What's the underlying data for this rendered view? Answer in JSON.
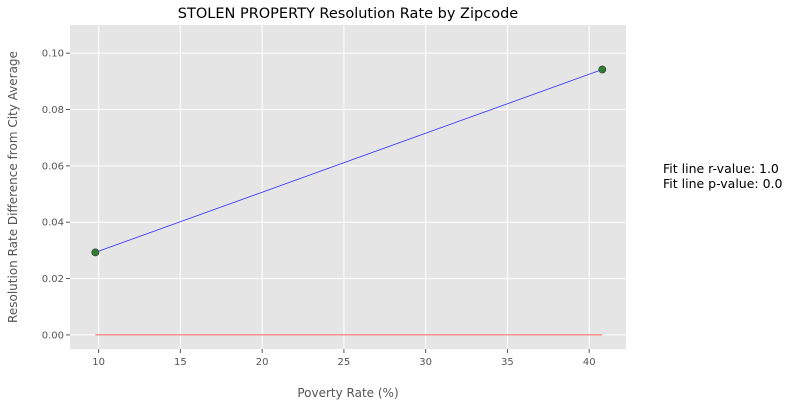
{
  "chart_data": {
    "type": "scatter",
    "title": "STOLEN PROPERTY Resolution Rate by Zipcode",
    "xlabel": "Poverty Rate (%)",
    "ylabel": "Resolution Rate Difference from City Average",
    "xlim": [
      8.25,
      42.25
    ],
    "ylim": [
      -0.005,
      0.11
    ],
    "xticks": [
      10,
      15,
      20,
      25,
      30,
      35,
      40
    ],
    "xtick_labels": [
      "10",
      "15",
      "20",
      "25",
      "30",
      "35",
      "40"
    ],
    "yticks": [
      0.0,
      0.02,
      0.04,
      0.06,
      0.08,
      0.1
    ],
    "ytick_labels": [
      "0.00",
      "0.02",
      "0.04",
      "0.06",
      "0.08",
      "0.10"
    ],
    "grid": true,
    "points": [
      {
        "x": 9.8,
        "y": 0.0293
      },
      {
        "x": 40.8,
        "y": 0.0942
      }
    ],
    "fit_line": {
      "x": [
        9.8,
        40.8
      ],
      "y": [
        0.0293,
        0.0942
      ],
      "color": "#3333ff"
    },
    "zero_line": {
      "x": [
        9.8,
        40.8
      ],
      "y": [
        0.0,
        0.0
      ],
      "color": "#ff6666"
    },
    "point_color": "#2e7d32",
    "background_color": "#e5e5e5"
  },
  "annotations": {
    "r_value": "Fit line r-value: 1.0",
    "p_value": "Fit line p-value: 0.0"
  }
}
